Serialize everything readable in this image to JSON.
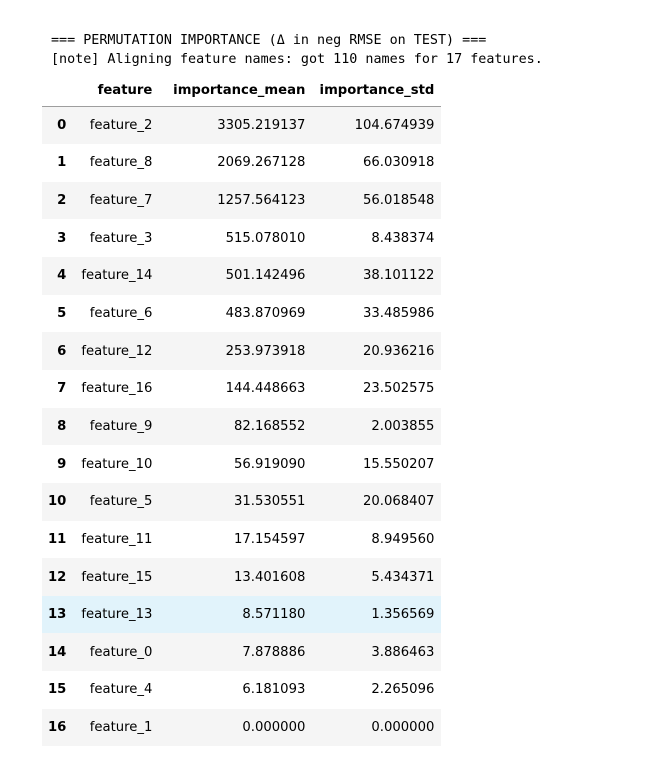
{
  "output": {
    "header_line": "=== PERMUTATION IMPORTANCE (Δ in neg RMSE on TEST) ===",
    "note_line": "[note] Aligning feature names: got 110 names for 17 features."
  },
  "table": {
    "index_header": "",
    "columns": [
      "feature",
      "importance_mean",
      "importance_std"
    ],
    "rows": [
      {
        "index": "0",
        "feature": "feature_2",
        "importance_mean": "3305.219137",
        "importance_std": "104.674939"
      },
      {
        "index": "1",
        "feature": "feature_8",
        "importance_mean": "2069.267128",
        "importance_std": "66.030918"
      },
      {
        "index": "2",
        "feature": "feature_7",
        "importance_mean": "1257.564123",
        "importance_std": "56.018548"
      },
      {
        "index": "3",
        "feature": "feature_3",
        "importance_mean": "515.078010",
        "importance_std": "8.438374"
      },
      {
        "index": "4",
        "feature": "feature_14",
        "importance_mean": "501.142496",
        "importance_std": "38.101122"
      },
      {
        "index": "5",
        "feature": "feature_6",
        "importance_mean": "483.870969",
        "importance_std": "33.485986"
      },
      {
        "index": "6",
        "feature": "feature_12",
        "importance_mean": "253.973918",
        "importance_std": "20.936216"
      },
      {
        "index": "7",
        "feature": "feature_16",
        "importance_mean": "144.448663",
        "importance_std": "23.502575"
      },
      {
        "index": "8",
        "feature": "feature_9",
        "importance_mean": "82.168552",
        "importance_std": "2.003855"
      },
      {
        "index": "9",
        "feature": "feature_10",
        "importance_mean": "56.919090",
        "importance_std": "15.550207"
      },
      {
        "index": "10",
        "feature": "feature_5",
        "importance_mean": "31.530551",
        "importance_std": "20.068407"
      },
      {
        "index": "11",
        "feature": "feature_11",
        "importance_mean": "17.154597",
        "importance_std": "8.949560"
      },
      {
        "index": "12",
        "feature": "feature_15",
        "importance_mean": "13.401608",
        "importance_std": "5.434371"
      },
      {
        "index": "13",
        "feature": "feature_13",
        "importance_mean": "8.571180",
        "importance_std": "1.356569"
      },
      {
        "index": "14",
        "feature": "feature_0",
        "importance_mean": "7.878886",
        "importance_std": "3.886463"
      },
      {
        "index": "15",
        "feature": "feature_4",
        "importance_mean": "6.181093",
        "importance_std": "2.265096"
      },
      {
        "index": "16",
        "feature": "feature_1",
        "importance_mean": "0.000000",
        "importance_std": "0.000000"
      }
    ],
    "hovered_row": 13,
    "colors": {
      "striped_row": "#f5f5f5",
      "hover_row": "#e1f3fb",
      "header_rule": "#9e9e9e"
    }
  }
}
